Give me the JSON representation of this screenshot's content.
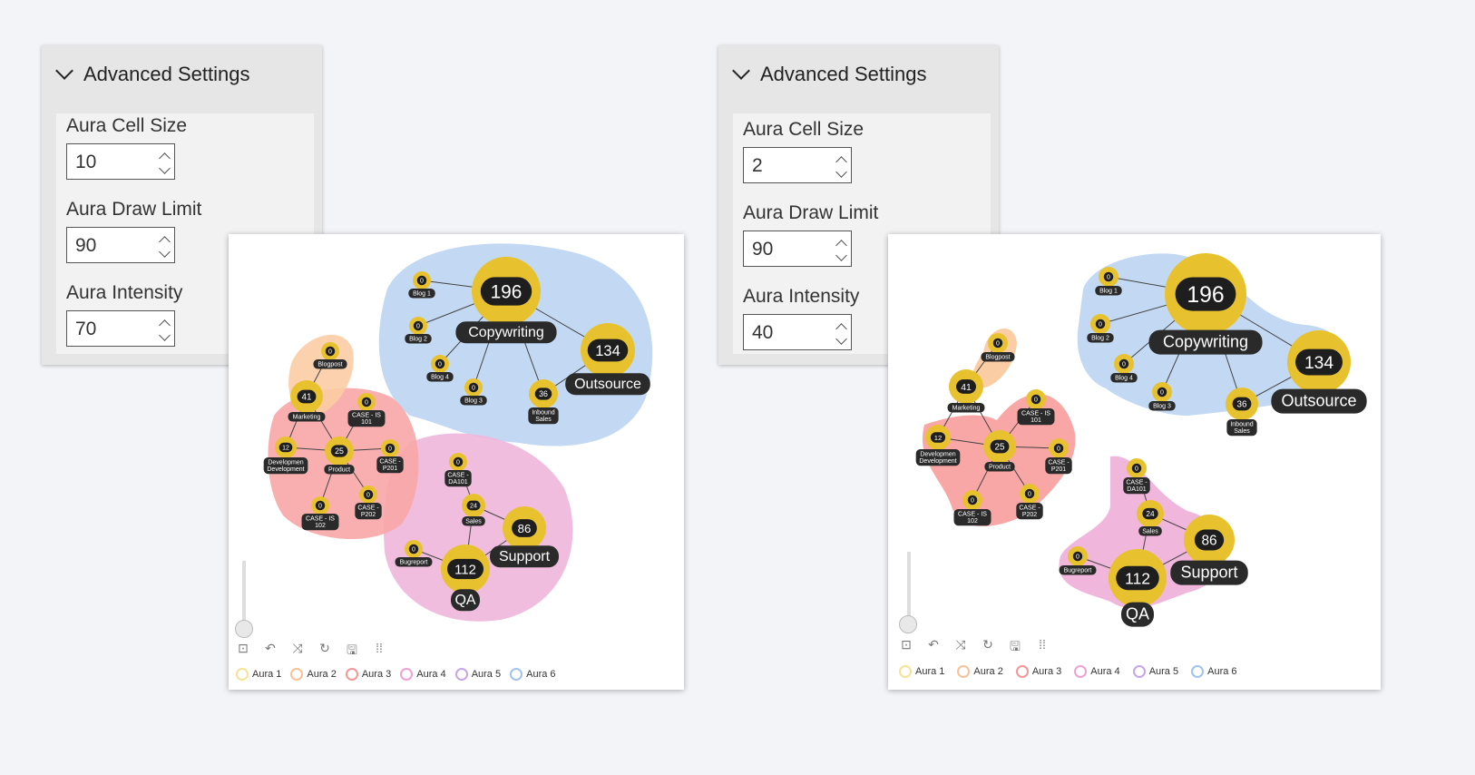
{
  "panels": [
    {
      "settings": {
        "title": "Advanced Settings",
        "fields": [
          {
            "label": "Aura Cell Size",
            "value": "10"
          },
          {
            "label": "Aura Draw Limit",
            "value": "90"
          },
          {
            "label": "Aura Intensity",
            "value": "70"
          }
        ]
      }
    },
    {
      "settings": {
        "title": "Advanced Settings",
        "fields": [
          {
            "label": "Aura Cell Size",
            "value": "2"
          },
          {
            "label": "Aura Draw Limit",
            "value": "90"
          },
          {
            "label": "Aura Intensity",
            "value": "40"
          }
        ]
      }
    }
  ],
  "nodes": [
    {
      "id": "blog1",
      "label": "Blog 1",
      "value": "0"
    },
    {
      "id": "copy",
      "label": "Copywriting",
      "value": "196"
    },
    {
      "id": "blog2",
      "label": "Blog 2",
      "value": "0"
    },
    {
      "id": "blog4",
      "label": "Blog 4",
      "value": "0"
    },
    {
      "id": "blog3",
      "label": "Blog 3",
      "value": "0"
    },
    {
      "id": "inbound",
      "label": "Inbound Sales",
      "value": "36"
    },
    {
      "id": "outsource",
      "label": "Outsource",
      "value": "134"
    },
    {
      "id": "blogpost",
      "label": "Blogpost",
      "value": "0"
    },
    {
      "id": "marketing",
      "label": "Marketing",
      "value": "41"
    },
    {
      "id": "is101",
      "label": "CASE - IS 101",
      "value": "0"
    },
    {
      "id": "dev",
      "label": "Development",
      "value": "12"
    },
    {
      "id": "product",
      "label": "Product",
      "value": "25"
    },
    {
      "id": "p201",
      "label": "CASE - P201",
      "value": "0"
    },
    {
      "id": "is102",
      "label": "CASE - IS 102",
      "value": "0"
    },
    {
      "id": "p202",
      "label": "CASE - P202",
      "value": "0"
    },
    {
      "id": "da101",
      "label": "CASE - DA101",
      "value": "0"
    },
    {
      "id": "sales",
      "label": "Sales",
      "value": "24"
    },
    {
      "id": "support",
      "label": "Support",
      "value": "86"
    },
    {
      "id": "bugreport",
      "label": "Bugreport",
      "value": "0"
    },
    {
      "id": "qa",
      "label": "QA",
      "value": "112"
    }
  ],
  "legend": [
    {
      "label": "Aura 1",
      "color": "#f5d66b"
    },
    {
      "label": "Aura 2",
      "color": "#f7a86a"
    },
    {
      "label": "Aura 3",
      "color": "#f06a6a"
    },
    {
      "label": "Aura 4",
      "color": "#e77ac0"
    },
    {
      "label": "Aura 5",
      "color": "#b07de0"
    },
    {
      "label": "Aura 6",
      "color": "#7aa8e8"
    }
  ],
  "colors": {
    "node": "#e8c22e",
    "pill": "#1e1e1e",
    "aura_blue": "#c3d8f3",
    "aura_pink": "#f0b6dc",
    "aura_red": "#f8a6a6",
    "aura_orange": "#fbcda4"
  }
}
